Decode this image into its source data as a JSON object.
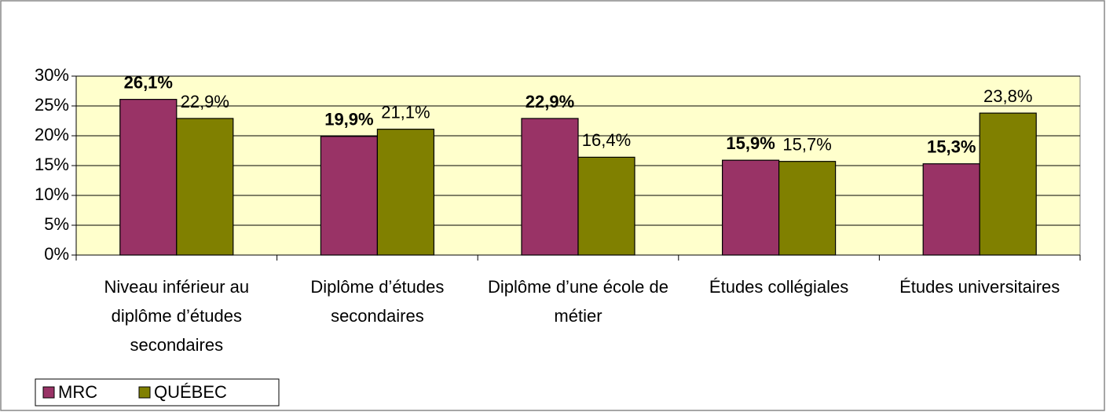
{
  "chart_data": {
    "type": "bar",
    "categories": [
      "Niveau inférieur au diplôme d’études secondaires",
      "Diplôme d’études secondaires",
      "Diplôme d’une école de métier",
      "Études collégiales",
      "Études universitaires"
    ],
    "series": [
      {
        "name": "MRC",
        "color": "#993366",
        "label_weight": "bold",
        "values": [
          26.1,
          19.9,
          22.9,
          15.9,
          15.3
        ],
        "value_labels": [
          "26,1%",
          "19,9%",
          "22,9%",
          "15,9%",
          "15,3%"
        ]
      },
      {
        "name": "QUÉBEC",
        "color": "#808000",
        "label_weight": "normal",
        "values": [
          22.9,
          21.1,
          16.4,
          15.7,
          23.8
        ],
        "value_labels": [
          "22,9%",
          "21,1%",
          "16,4%",
          "15,7%",
          "23,8%"
        ]
      }
    ],
    "ylim": [
      0,
      30
    ],
    "yticks": [
      {
        "value": 0,
        "label": "0%"
      },
      {
        "value": 5,
        "label": "5%"
      },
      {
        "value": 10,
        "label": "10%"
      },
      {
        "value": 15,
        "label": "15%"
      },
      {
        "value": 20,
        "label": "20%"
      },
      {
        "value": 25,
        "label": "25%"
      },
      {
        "value": 30,
        "label": "30%"
      }
    ],
    "grid": true,
    "plot_background": "#ffffcc",
    "legend": "bottom-left"
  }
}
